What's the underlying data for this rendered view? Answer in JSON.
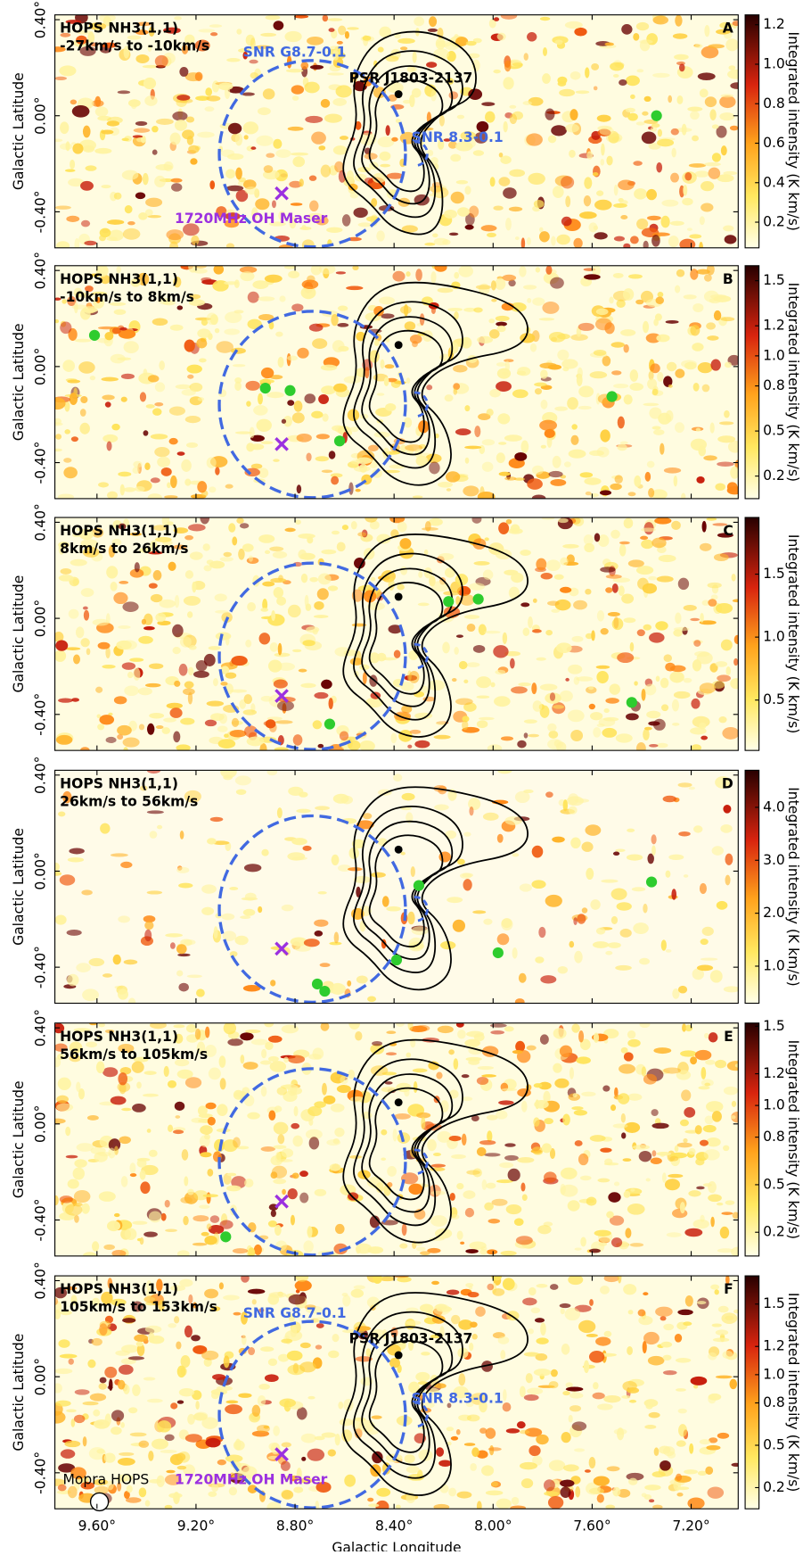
{
  "chart_data": [
    {
      "type": "image",
      "panel": "A",
      "title": "HOPS NH3(1,1)",
      "subtitle": "-27km/s to -10km/s",
      "ylabel": "Galactic Latitude",
      "colorbar_label": "Integrated intensity (K km/s)",
      "xlim": [
        9.77,
        7.01
      ],
      "ylim": [
        -0.55,
        0.42
      ],
      "yticks": [
        {
          "value": 0.4,
          "label": "0.40°"
        },
        {
          "value": 0,
          "label": "0.00°"
        },
        {
          "value": -0.4,
          "label": "-0.40°"
        }
      ],
      "clim": [
        0.07,
        1.25
      ],
      "cticks": [
        0.2,
        0.4,
        0.6,
        0.8,
        {
          "value": 1,
          "label": "1.0"
        },
        1.2
      ],
      "points": {
        "color": "#2ecc2e",
        "x": [
          7.34
        ],
        "y": [
          0.0
        ]
      },
      "annotations": [
        "SNR G8.7-0.1",
        "PSR J1803-2137",
        "SNR 8.3-0.1",
        "1720MHz OH Maser"
      ]
    },
    {
      "type": "image",
      "panel": "B",
      "title": "HOPS NH3(1,1)",
      "subtitle": "-10km/s to 8km/s",
      "ylabel": "Galactic Latitude",
      "colorbar_label": "Integrated intensity (K km/s)",
      "xlim": [
        9.77,
        7.01
      ],
      "ylim": [
        -0.55,
        0.42
      ],
      "yticks": [
        {
          "value": 0.4,
          "label": "0.40°"
        },
        {
          "value": 0,
          "label": "0.00°"
        },
        {
          "value": -0.4,
          "label": "-0.40°"
        }
      ],
      "clim": [
        0.05,
        1.6
      ],
      "cticks": [
        0.2,
        0.5,
        0.8,
        {
          "value": 1,
          "label": "1.0"
        },
        1.2,
        1.5
      ],
      "points": {
        "color": "#2ecc2e",
        "x": [
          9.61,
          8.92,
          8.82,
          8.62,
          7.52
        ],
        "y": [
          0.13,
          -0.09,
          -0.1,
          -0.31,
          -0.125
        ]
      }
    },
    {
      "type": "image",
      "panel": "C",
      "title": "HOPS NH3(1,1)",
      "subtitle": "8km/s to 26km/s",
      "ylabel": "Galactic Latitude",
      "colorbar_label": "Integrated intensity (K km/s)",
      "xlim": [
        9.77,
        7.01
      ],
      "ylim": [
        -0.55,
        0.42
      ],
      "yticks": [
        {
          "value": 0.4,
          "label": "0.40°"
        },
        {
          "value": 0,
          "label": "0.00°"
        },
        {
          "value": -0.4,
          "label": "-0.40°"
        }
      ],
      "clim": [
        0.1,
        1.95
      ],
      "cticks": [
        0.5,
        {
          "value": 1,
          "label": "1.0"
        },
        1.5
      ],
      "points": {
        "color": "#2ecc2e",
        "x": [
          8.18,
          8.06,
          8.66,
          7.44
        ],
        "y": [
          0.07,
          0.08,
          -0.44,
          -0.35
        ]
      }
    },
    {
      "type": "image",
      "panel": "D",
      "title": "HOPS NH3(1,1)",
      "subtitle": "26km/s to 56km/s",
      "ylabel": "Galactic Latitude",
      "colorbar_label": "Integrated intensity (K km/s)",
      "xlim": [
        9.77,
        7.01
      ],
      "ylim": [
        -0.55,
        0.42
      ],
      "yticks": [
        {
          "value": 0.4,
          "label": "0.40°"
        },
        {
          "value": 0,
          "label": "0.00°"
        },
        {
          "value": -0.4,
          "label": "-0.40°"
        }
      ],
      "clim": [
        0.3,
        4.7
      ],
      "cticks": [
        {
          "value": 1,
          "label": "1.0"
        },
        {
          "value": 2,
          "label": "2.0"
        },
        {
          "value": 3,
          "label": "3.0"
        },
        {
          "value": 4,
          "label": "4.0"
        }
      ],
      "points": {
        "color": "#2ecc2e",
        "x": [
          8.3,
          8.39,
          7.98,
          7.36,
          8.71,
          8.68
        ],
        "y": [
          -0.06,
          -0.37,
          -0.34,
          -0.045,
          -0.47,
          -0.5
        ]
      }
    },
    {
      "type": "image",
      "panel": "E",
      "title": "HOPS NH3(1,1)",
      "subtitle": "56km/s to 105km/s",
      "ylabel": "Galactic Latitude",
      "colorbar_label": "Integrated intensity (K km/s)",
      "xlim": [
        9.77,
        7.01
      ],
      "ylim": [
        -0.55,
        0.42
      ],
      "yticks": [
        {
          "value": 0.4,
          "label": "0.40°"
        },
        {
          "value": 0,
          "label": "0.00°"
        },
        {
          "value": -0.4,
          "label": "-0.40°"
        }
      ],
      "clim": [
        0.05,
        1.52
      ],
      "cticks": [
        0.2,
        0.5,
        0.8,
        {
          "value": 1,
          "label": "1.0"
        },
        1.2,
        1.5
      ],
      "points": {
        "color": "#2ecc2e",
        "x": [
          9.08
        ],
        "y": [
          -0.47
        ]
      }
    },
    {
      "type": "image",
      "panel": "F",
      "title": "HOPS NH3(1,1)",
      "subtitle": "105km/s to 153km/s",
      "ylabel": "Galactic Latitude",
      "colorbar_label": "Integrated intensity (K km/s)",
      "xlabel": "Galactic Longitude",
      "xlim": [
        9.77,
        7.01
      ],
      "ylim": [
        -0.55,
        0.42
      ],
      "xticks": [
        {
          "value": 9.6,
          "label": "9.60°"
        },
        {
          "value": 9.2,
          "label": "9.20°"
        },
        {
          "value": 8.8,
          "label": "8.80°"
        },
        {
          "value": 8.4,
          "label": "8.40°"
        },
        {
          "value": 8,
          "label": "8.00°"
        },
        {
          "value": 7.6,
          "label": "7.60°"
        },
        {
          "value": 7.2,
          "label": "7.20°"
        }
      ],
      "yticks": [
        {
          "value": 0.4,
          "label": "0.40°"
        },
        {
          "value": 0,
          "label": "0.00°"
        },
        {
          "value": -0.4,
          "label": "-0.40°"
        }
      ],
      "clim": [
        0.05,
        1.7
      ],
      "cticks": [
        0.2,
        0.5,
        0.8,
        {
          "value": 1,
          "label": "1.0"
        },
        1.2,
        1.5
      ],
      "points": {
        "color": "#2ecc2e",
        "x": [],
        "y": []
      },
      "annotations": [
        "SNR G8.7-0.1",
        "PSR J1803-2137",
        "SNR 8.3-0.1",
        "1720MHz OH Maser",
        "Mopra HOPS"
      ]
    }
  ]
}
